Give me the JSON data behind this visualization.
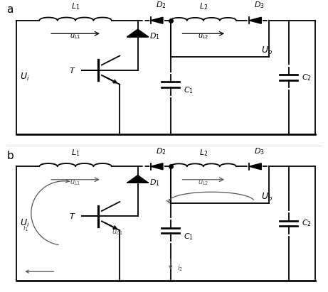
{
  "bg_color": "#ffffff",
  "lw": 1.3,
  "fig_width": 4.61,
  "fig_height": 4.11,
  "dpi": 100
}
